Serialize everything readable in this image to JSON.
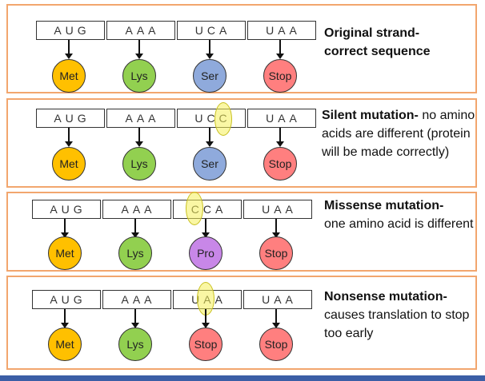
{
  "colors": {
    "Met": "#ffc000",
    "Lys": "#92d050",
    "Ser": "#8faadc",
    "Pro": "#c887e8",
    "Stop": "#ff7f7f",
    "highlight": "#f5f05a",
    "panel_border": "#f2a66e"
  },
  "panels": [
    {
      "codons": [
        "AUG",
        "AAA",
        "UCA",
        "UAA"
      ],
      "aminos": [
        "Met",
        "Lys",
        "Ser",
        "Stop"
      ],
      "title": "Original strand-",
      "text": "correct sequence"
    },
    {
      "codons": [
        "AUG",
        "AAA",
        "UCC",
        "UAA"
      ],
      "aminos": [
        "Met",
        "Lys",
        "Ser",
        "Stop"
      ],
      "title": "Silent mutation-",
      "text": " no amino acids are different (protein will be made correctly)"
    },
    {
      "codons": [
        "AUG",
        "AAA",
        "CCA",
        "UAA"
      ],
      "aminos": [
        "Met",
        "Lys",
        "Pro",
        "Stop"
      ],
      "title": "Missense mutation-",
      "text": "one amino acid is different"
    },
    {
      "codons": [
        "AUG",
        "AAA",
        "UAA",
        "UAA"
      ],
      "aminos": [
        "Met",
        "Lys",
        "Stop",
        "Stop"
      ],
      "title": "Nonsense mutation-",
      "text": "causes translation to stop too early"
    }
  ]
}
